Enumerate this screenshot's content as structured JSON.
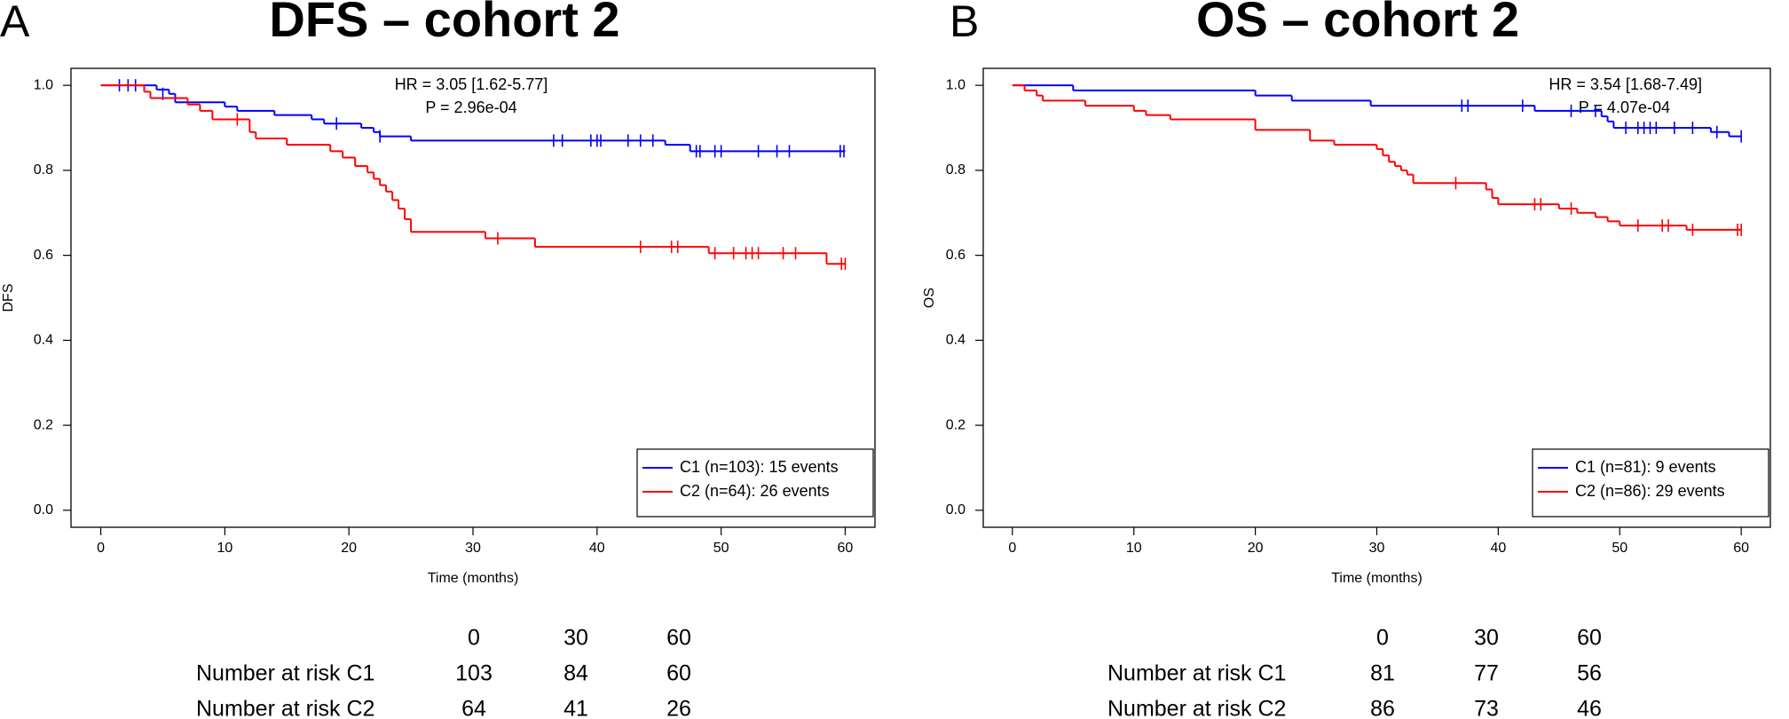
{
  "chart_data": [
    {
      "type": "step",
      "panel_label": "A",
      "title": "DFS – cohort 2",
      "ylabel": "DFS",
      "xlabel": "Time (months)",
      "annotations": [
        "HR = 3.05 [1.62-5.77]",
        "P = 2.96e-04"
      ],
      "xlim": [
        -2.4,
        62.4
      ],
      "ylim": [
        -0.04,
        1.04
      ],
      "xticks": [
        0,
        10,
        20,
        30,
        40,
        50,
        60
      ],
      "yticks": [
        {
          "value": 0,
          "label": "0.0"
        },
        {
          "value": 0.2,
          "label": "0.2"
        },
        {
          "value": 0.4,
          "label": "0.4"
        },
        {
          "value": 0.6,
          "label": "0.6"
        },
        {
          "value": 0.8,
          "label": "0.8"
        },
        {
          "value": 1,
          "label": "1.0"
        }
      ],
      "legend": "bottomright",
      "series": [
        {
          "name": "C1 (n=103): 15 events",
          "color": "#0000ff",
          "x": [
            0,
            4.5,
            5.5,
            6,
            10,
            11,
            14,
            17,
            18,
            21,
            22,
            22.5,
            25,
            45.5,
            47.5,
            60
          ],
          "values": [
            1.0,
            0.99,
            0.98,
            0.96,
            0.95,
            0.94,
            0.93,
            0.92,
            0.91,
            0.9,
            0.89,
            0.88,
            0.87,
            0.86,
            0.845,
            0.845
          ],
          "censor_x": [
            1.5,
            2.2,
            2.8,
            5,
            19,
            22.5,
            36.5,
            37.2,
            39.5,
            40,
            40.3,
            42.5,
            43.5,
            44.5,
            48,
            48.3,
            49.5,
            50,
            53,
            54.5,
            55.5,
            59.6,
            59.9
          ],
          "censor_values": [
            1.0,
            1.0,
            1.0,
            0.98,
            0.91,
            0.88,
            0.87,
            0.87,
            0.87,
            0.87,
            0.87,
            0.87,
            0.87,
            0.87,
            0.845,
            0.845,
            0.845,
            0.845,
            0.845,
            0.845,
            0.845,
            0.845,
            0.845
          ]
        },
        {
          "name": "C2 (n=64): 26 events",
          "color": "#ff0000",
          "x": [
            0,
            3.5,
            4,
            7,
            8,
            9,
            12,
            12.5,
            15,
            18.5,
            19.5,
            20.5,
            21.5,
            22,
            22.5,
            23,
            23.5,
            24,
            24.5,
            25,
            31,
            35,
            49,
            58.5,
            60
          ],
          "values": [
            1.0,
            0.985,
            0.97,
            0.955,
            0.94,
            0.92,
            0.89,
            0.875,
            0.86,
            0.845,
            0.83,
            0.81,
            0.795,
            0.78,
            0.765,
            0.75,
            0.73,
            0.71,
            0.685,
            0.655,
            0.64,
            0.62,
            0.605,
            0.58,
            0.58
          ],
          "censor_x": [
            11,
            32,
            43.5,
            46,
            46.5,
            49.5,
            51,
            52,
            52.5,
            53,
            55,
            56,
            59.7,
            60
          ],
          "censor_values": [
            0.92,
            0.64,
            0.62,
            0.62,
            0.62,
            0.605,
            0.605,
            0.605,
            0.605,
            0.605,
            0.605,
            0.605,
            0.58,
            0.58
          ]
        }
      ],
      "risk_table": {
        "times": [
          0,
          30,
          60
        ],
        "rows": [
          {
            "label": "Number at risk C1",
            "values": [
              103,
              84,
              60
            ]
          },
          {
            "label": "Number at risk C2",
            "values": [
              64,
              41,
              26
            ]
          }
        ]
      }
    },
    {
      "type": "step",
      "panel_label": "B",
      "title": "OS – cohort 2",
      "ylabel": "OS",
      "xlabel": "Time (months)",
      "annotations": [
        "HR = 3.54 [1.68-7.49]",
        "P = 4.07e-04"
      ],
      "xlim": [
        -2.4,
        62.4
      ],
      "ylim": [
        -0.04,
        1.04
      ],
      "xticks": [
        0,
        10,
        20,
        30,
        40,
        50,
        60
      ],
      "yticks": [
        {
          "value": 0,
          "label": "0.0"
        },
        {
          "value": 0.2,
          "label": "0.2"
        },
        {
          "value": 0.4,
          "label": "0.4"
        },
        {
          "value": 0.6,
          "label": "0.6"
        },
        {
          "value": 0.8,
          "label": "0.8"
        },
        {
          "value": 1,
          "label": "1.0"
        }
      ],
      "legend": "bottomright",
      "series": [
        {
          "name": "C1 (n=81): 9 events",
          "color": "#0000ff",
          "x": [
            0,
            5,
            20,
            23,
            29.5,
            43,
            48.5,
            49,
            49.5,
            57.5,
            59,
            60
          ],
          "values": [
            1.0,
            0.988,
            0.976,
            0.964,
            0.952,
            0.94,
            0.927,
            0.915,
            0.9,
            0.89,
            0.88,
            0.88
          ],
          "censor_x": [
            37,
            37.5,
            42,
            46,
            48,
            50.5,
            51.5,
            52,
            52.5,
            53,
            54.5,
            56,
            58,
            60
          ],
          "censor_values": [
            0.952,
            0.952,
            0.952,
            0.94,
            0.94,
            0.9,
            0.9,
            0.9,
            0.9,
            0.9,
            0.9,
            0.9,
            0.89,
            0.88
          ]
        },
        {
          "name": "C2 (n=86): 29 events",
          "color": "#ff0000",
          "x": [
            0,
            1,
            2,
            2.5,
            6,
            10,
            11,
            13,
            20,
            24.5,
            26.5,
            30,
            30.5,
            31,
            31.5,
            32,
            32.5,
            33,
            39,
            39.5,
            40,
            45,
            46.5,
            48,
            49,
            50,
            55.5,
            60
          ],
          "values": [
            1.0,
            0.988,
            0.976,
            0.964,
            0.952,
            0.94,
            0.93,
            0.92,
            0.895,
            0.87,
            0.86,
            0.85,
            0.835,
            0.82,
            0.81,
            0.8,
            0.79,
            0.77,
            0.755,
            0.735,
            0.72,
            0.71,
            0.7,
            0.69,
            0.68,
            0.67,
            0.66,
            0.66
          ],
          "censor_x": [
            36.5,
            43,
            43.5,
            46,
            51.5,
            53.5,
            54,
            56,
            59.7,
            60
          ],
          "censor_values": [
            0.77,
            0.72,
            0.72,
            0.71,
            0.67,
            0.67,
            0.67,
            0.66,
            0.66,
            0.66
          ]
        }
      ],
      "risk_table": {
        "times": [
          0,
          30,
          60
        ],
        "rows": [
          {
            "label": "Number at risk C1",
            "values": [
              81,
              77,
              56
            ]
          },
          {
            "label": "Number at risk C2",
            "values": [
              86,
              73,
              46
            ]
          }
        ]
      }
    }
  ]
}
